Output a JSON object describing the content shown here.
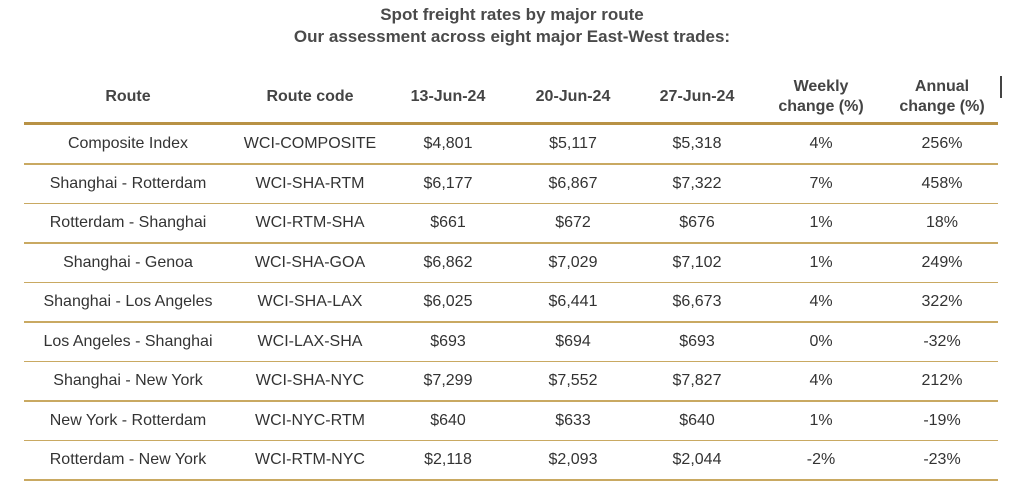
{
  "title": "Spot freight rates by major route",
  "subtitle": "Our assessment across eight major East-West trades:",
  "colors": {
    "rule_gold": "#b89245",
    "text": "#333333"
  },
  "chart_data": {
    "type": "table",
    "title": "Spot freight rates by major route",
    "subtitle": "Our assessment across eight major East-West trades:",
    "columns": [
      {
        "line1": "Route",
        "line2": ""
      },
      {
        "line1": "Route code",
        "line2": ""
      },
      {
        "line1": "13-Jun-24",
        "line2": ""
      },
      {
        "line1": "20-Jun-24",
        "line2": ""
      },
      {
        "line1": "27-Jun-24",
        "line2": ""
      },
      {
        "line1": "Weekly",
        "line2": "change (%)"
      },
      {
        "line1": "Annual",
        "line2": "change (%)"
      }
    ],
    "rows": [
      [
        "Composite Index",
        "WCI-COMPOSITE",
        "$4,801",
        "$5,117",
        "$5,318",
        "4%",
        "256%"
      ],
      [
        "Shanghai - Rotterdam",
        "WCI-SHA-RTM",
        "$6,177",
        "$6,867",
        "$7,322",
        "7%",
        "458%"
      ],
      [
        "Rotterdam - Shanghai",
        "WCI-RTM-SHA",
        "$661",
        "$672",
        "$676",
        "1%",
        "18%"
      ],
      [
        "Shanghai - Genoa",
        "WCI-SHA-GOA",
        "$6,862",
        "$7,029",
        "$7,102",
        "1%",
        "249%"
      ],
      [
        "Shanghai - Los Angeles",
        "WCI-SHA-LAX",
        "$6,025",
        "$6,441",
        "$6,673",
        "4%",
        "322%"
      ],
      [
        "Los Angeles - Shanghai",
        "WCI-LAX-SHA",
        "$693",
        "$694",
        "$693",
        "0%",
        "-32%"
      ],
      [
        "Shanghai - New York",
        "WCI-SHA-NYC",
        "$7,299",
        "$7,552",
        "$7,827",
        "4%",
        "212%"
      ],
      [
        "New York - Rotterdam",
        "WCI-NYC-RTM",
        "$640",
        "$633",
        "$640",
        "1%",
        "-19%"
      ],
      [
        "Rotterdam - New York",
        "WCI-RTM-NYC",
        "$2,118",
        "$2,093",
        "$2,044",
        "-2%",
        "-23%"
      ]
    ]
  }
}
